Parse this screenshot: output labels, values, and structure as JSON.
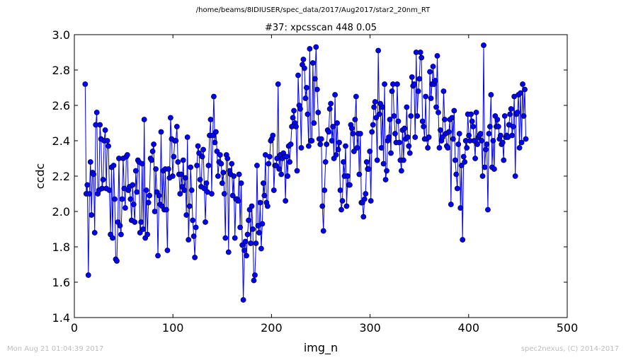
{
  "header": {
    "file_path": "/home/beams/8IDIUSER/spec_data/2017/Aug2017/star2_20nm_RT"
  },
  "footer": {
    "timestamp": "Mon Aug 21 01:04:39 2017",
    "credit": "spec2nexus, (C) 2014-2017"
  },
  "chart_data": {
    "type": "line",
    "title": "#37: xpcsscan 448 0.05",
    "xlabel": "img_n",
    "ylabel": "ccdc",
    "xlim": [
      0,
      500
    ],
    "ylim": [
      1.4,
      3.0
    ],
    "xticks": [
      "0",
      "100",
      "200",
      "300",
      "400",
      "500"
    ],
    "yticks": [
      "1.4",
      "1.6",
      "1.8",
      "2.0",
      "2.2",
      "2.4",
      "2.6",
      "2.8",
      "3.0"
    ],
    "grid": false,
    "legend": "none",
    "marker": "circle",
    "color": "#0000ff",
    "x_start": 11,
    "x_end": 458,
    "values": [
      2.72,
      2.1,
      2.15,
      1.64,
      2.1,
      2.28,
      1.98,
      2.22,
      2.21,
      1.88,
      2.49,
      2.56,
      2.1,
      2.12,
      2.49,
      2.41,
      2.13,
      2.18,
      2.4,
      2.46,
      2.13,
      2.4,
      2.37,
      2.12,
      1.87,
      2.25,
      1.85,
      2.26,
      2.07,
      1.73,
      1.72,
      1.94,
      2.3,
      1.92,
      1.87,
      2.07,
      2.3,
      2.13,
      2.02,
      2.31,
      2.32,
      2.12,
      2.14,
      2.07,
      1.95,
      2.15,
      2.04,
      1.94,
      2.23,
      2.11,
      2.29,
      2.28,
      1.88,
      1.94,
      2.27,
      1.9,
      2.52,
      1.85,
      2.12,
      1.87,
      2.05,
      2.09,
      2.3,
      2.29,
      2.34,
      2.38,
      2.0,
      2.24,
      2.11,
      1.75,
      2.09,
      2.04,
      2.45,
      2.03,
      2.23,
      2.01,
      2.24,
      2.01,
      1.78,
      2.24,
      2.19,
      2.53,
      2.41,
      2.2,
      2.31,
      2.4,
      2.4,
      2.48,
      2.28,
      2.21,
      2.1,
      2.21,
      2.14,
      2.29,
      2.12,
      2.19,
      1.98,
      2.42,
      1.84,
      2.03,
      2.25,
      2.12,
      1.95,
      1.86,
      1.74,
      1.91,
      2.26,
      2.37,
      2.33,
      2.18,
      2.14,
      2.31,
      2.35,
      2.13,
      1.94,
      2.16,
      2.11,
      2.26,
      2.43,
      2.52,
      2.1,
      2.43,
      2.65,
      2.39,
      2.45,
      2.34,
      2.2,
      2.28,
      2.32,
      2.27,
      2.16,
      2.22,
      2.1,
      1.85,
      2.32,
      2.3,
      1.77,
      2.23,
      2.21,
      2.27,
      2.09,
      2.2,
      1.85,
      2.07,
      2.07,
      2.06,
      2.21,
      1.91,
      2.16,
      1.81,
      1.5,
      1.78,
      1.83,
      1.75,
      1.87,
      1.95,
      2.01,
      1.82,
      2.03,
      1.9,
      1.61,
      1.64,
      1.82,
      2.26,
      1.92,
      1.88,
      2.05,
      1.79,
      1.93,
      2.16,
      2.09,
      2.32,
      2.05,
      2.03,
      2.27,
      2.31,
      2.4,
      2.41,
      2.43,
      2.12,
      2.26,
      2.26,
      2.3,
      2.72,
      2.24,
      2.32,
      2.21,
      2.3,
      2.33,
      2.31,
      2.06,
      2.31,
      2.2,
      2.37,
      2.28,
      2.38,
      2.48,
      2.53,
      2.57,
      2.5,
      2.48,
      2.23,
      2.77,
      2.6,
      2.58,
      2.36,
      2.83,
      2.86,
      2.81,
      2.64,
      2.7,
      2.55,
      2.37,
      2.92,
      2.4,
      2.4,
      2.84,
      2.5,
      2.75,
      2.93,
      2.69,
      2.56,
      2.41,
      2.38,
      2.41,
      2.03,
      1.89,
      2.12,
      2.28,
      2.38,
      2.46,
      2.45,
      2.58,
      2.61,
      2.4,
      2.48,
      2.3,
      2.66,
      2.32,
      2.5,
      2.35,
      2.39,
      2.12,
      2.01,
      2.06,
      2.28,
      2.2,
      2.37,
      2.03,
      2.2,
      2.15,
      2.15,
      2.49,
      2.47,
      2.44,
      2.34,
      2.52,
      2.65,
      2.36,
      2.44,
      2.21,
      2.44,
      2.05,
      2.05,
      1.97,
      2.07,
      2.1,
      2.28,
      2.24,
      2.24,
      2.34,
      2.06,
      2.45,
      2.49,
      2.59,
      2.62,
      2.53,
      2.29,
      2.91,
      2.55,
      2.61,
      2.36,
      2.59,
      2.27,
      2.72,
      2.18,
      2.23,
      2.4,
      2.42,
      2.52,
      2.33,
      2.68,
      2.72,
      2.54,
      2.44,
      2.39,
      2.72,
      2.51,
      2.39,
      2.29,
      2.23,
      2.46,
      2.29,
      2.47,
      2.41,
      2.59,
      2.42,
      2.37,
      2.33,
      2.54,
      2.76,
      2.71,
      2.72,
      2.42,
      2.9,
      2.54,
      2.68,
      2.75,
      2.9,
      2.87,
      2.51,
      2.48,
      2.41,
      2.65,
      2.41,
      2.36,
      2.42,
      2.79,
      2.64,
      2.72,
      2.82,
      2.72,
      2.74,
      2.59,
      2.88,
      2.56,
      2.36,
      2.46,
      2.4,
      2.42,
      2.68,
      2.52,
      2.44,
      2.37,
      2.36,
      2.45,
      2.52,
      2.04,
      2.53,
      2.41,
      2.57,
      2.29,
      2.21,
      2.13,
      2.38,
      2.44,
      2.02,
      2.26,
      1.84,
      2.31,
      2.28,
      2.4,
      2.36,
      2.55,
      2.43,
      2.4,
      2.55,
      2.51,
      2.48,
      2.4,
      2.3,
      2.56,
      2.38,
      2.42,
      2.43,
      2.44,
      2.4,
      2.2,
      2.94,
      2.25,
      2.35,
      2.38,
      2.01,
      2.44,
      2.48,
      2.66,
      2.25,
      2.4,
      2.24,
      2.54,
      2.48,
      2.52,
      2.48,
      2.41,
      2.43,
      2.38,
      2.39,
      2.29,
      2.54,
      2.42,
      2.43,
      2.42,
      2.49,
      2.55,
      2.58,
      2.43,
      2.48,
      2.65,
      2.2,
      2.55,
      2.56,
      2.66,
      2.36,
      2.67,
      2.39,
      2.72,
      2.54,
      2.69,
      2.41
    ]
  }
}
